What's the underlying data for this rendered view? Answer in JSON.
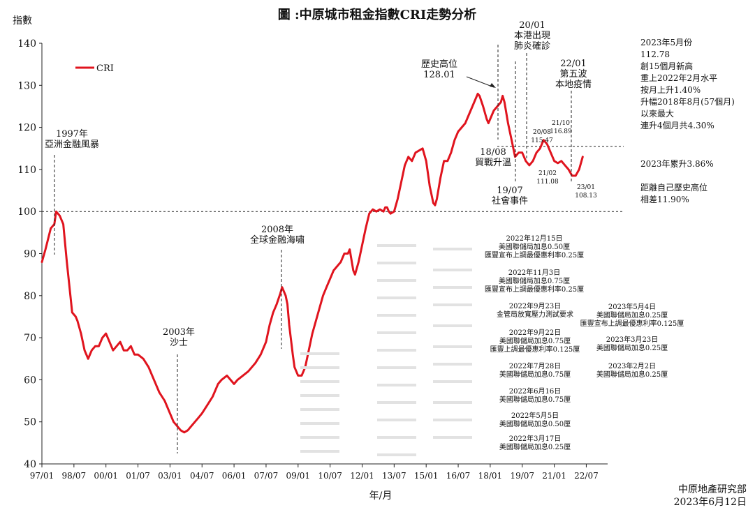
{
  "chart_data": {
    "type": "line",
    "title": "圖 :中原城市租金指數CRI走勢分析",
    "ylabel": "指數",
    "xlabel": "年/月",
    "ylim": [
      40,
      140
    ],
    "yticks": [
      40,
      50,
      60,
      70,
      80,
      90,
      100,
      110,
      120,
      130,
      140
    ],
    "xtick_labels": [
      "97/01",
      "98/07",
      "00/01",
      "01/07",
      "03/01",
      "04/07",
      "06/01",
      "07/07",
      "09/01",
      "10/07",
      "12/01",
      "13/07",
      "15/01",
      "16/07",
      "18/01",
      "19/07",
      "21/01",
      "22/07"
    ],
    "x_start": "97/01",
    "legend": "CRI",
    "reference_lines": [
      100,
      115.5
    ],
    "series": [
      {
        "name": "CRI",
        "color": "#e0141e",
        "points": [
          [
            0,
            88
          ],
          [
            2,
            91
          ],
          [
            5,
            96
          ],
          [
            7,
            97
          ],
          [
            8,
            100
          ],
          [
            10,
            99
          ],
          [
            12,
            97
          ],
          [
            14,
            88
          ],
          [
            16,
            80
          ],
          [
            17,
            76
          ],
          [
            19,
            75
          ],
          [
            20,
            74
          ],
          [
            22,
            71
          ],
          [
            24,
            67
          ],
          [
            26,
            65
          ],
          [
            28,
            67
          ],
          [
            30,
            68
          ],
          [
            32,
            68
          ],
          [
            34,
            70
          ],
          [
            36,
            71
          ],
          [
            38,
            69
          ],
          [
            40,
            67
          ],
          [
            42,
            68
          ],
          [
            44,
            69
          ],
          [
            46,
            67
          ],
          [
            48,
            67
          ],
          [
            50,
            68
          ],
          [
            52,
            66
          ],
          [
            54,
            66
          ],
          [
            57,
            65
          ],
          [
            60,
            63
          ],
          [
            62,
            61
          ],
          [
            64,
            59
          ],
          [
            66,
            57
          ],
          [
            69,
            55
          ],
          [
            72,
            52
          ],
          [
            74,
            50
          ],
          [
            76,
            49
          ],
          [
            78,
            48
          ],
          [
            80,
            47.5
          ],
          [
            82,
            48
          ],
          [
            84,
            49
          ],
          [
            86,
            50
          ],
          [
            88,
            51
          ],
          [
            90,
            52
          ],
          [
            93,
            54
          ],
          [
            96,
            56
          ],
          [
            99,
            59
          ],
          [
            101,
            60
          ],
          [
            104,
            61
          ],
          [
            106,
            60
          ],
          [
            108,
            59
          ],
          [
            110,
            60
          ],
          [
            113,
            61
          ],
          [
            116,
            62
          ],
          [
            118,
            63
          ],
          [
            120,
            64
          ],
          [
            123,
            66
          ],
          [
            126,
            69
          ],
          [
            128,
            73
          ],
          [
            130,
            76
          ],
          [
            132,
            78
          ],
          [
            134,
            80.5
          ],
          [
            135,
            82
          ],
          [
            137,
            80
          ],
          [
            138,
            78
          ],
          [
            139,
            73
          ],
          [
            141,
            66
          ],
          [
            142,
            63
          ],
          [
            144,
            61
          ],
          [
            146,
            61
          ],
          [
            148,
            63
          ],
          [
            150,
            67
          ],
          [
            152,
            71
          ],
          [
            154,
            74
          ],
          [
            156,
            77
          ],
          [
            158,
            80
          ],
          [
            160,
            82
          ],
          [
            162,
            84
          ],
          [
            164,
            86
          ],
          [
            166,
            87
          ],
          [
            168,
            88
          ],
          [
            170,
            90
          ],
          [
            172,
            90
          ],
          [
            173,
            91
          ],
          [
            175,
            86
          ],
          [
            176,
            85
          ],
          [
            178,
            88
          ],
          [
            180,
            92
          ],
          [
            182,
            96
          ],
          [
            184,
            99.5
          ],
          [
            186,
            100.5
          ],
          [
            188,
            100
          ],
          [
            190,
            100.5
          ],
          [
            192,
            100
          ],
          [
            193,
            101
          ],
          [
            194,
            101
          ],
          [
            195,
            100
          ],
          [
            196,
            99.5
          ],
          [
            198,
            100
          ],
          [
            200,
            103
          ],
          [
            202,
            107
          ],
          [
            204,
            111
          ],
          [
            206,
            113
          ],
          [
            208,
            112
          ],
          [
            210,
            114
          ],
          [
            212,
            114.5
          ],
          [
            214,
            115
          ],
          [
            216,
            112
          ],
          [
            218,
            106
          ],
          [
            220,
            102
          ],
          [
            221,
            101.5
          ],
          [
            222,
            103
          ],
          [
            224,
            108
          ],
          [
            226,
            112
          ],
          [
            228,
            112
          ],
          [
            230,
            114
          ],
          [
            232,
            117
          ],
          [
            234,
            119
          ],
          [
            236,
            120
          ],
          [
            238,
            121
          ],
          [
            240,
            123
          ],
          [
            242,
            125
          ],
          [
            244,
            127
          ],
          [
            245,
            128
          ],
          [
            246,
            127.5
          ],
          [
            248,
            125
          ],
          [
            250,
            122
          ],
          [
            251,
            121
          ],
          [
            252,
            122
          ],
          [
            254,
            124
          ],
          [
            256,
            125
          ],
          [
            258,
            126
          ],
          [
            259,
            127.5
          ],
          [
            260,
            126
          ],
          [
            262,
            121
          ],
          [
            264,
            117
          ],
          [
            266,
            113
          ],
          [
            268,
            114
          ],
          [
            270,
            114
          ],
          [
            272,
            112
          ],
          [
            274,
            111
          ],
          [
            276,
            112
          ],
          [
            278,
            114
          ],
          [
            280,
            115
          ],
          [
            282,
            117
          ],
          [
            284,
            116
          ],
          [
            286,
            114
          ],
          [
            288,
            112
          ],
          [
            290,
            111.5
          ],
          [
            292,
            112
          ],
          [
            294,
            111
          ],
          [
            296,
            110
          ],
          [
            298,
            108.5
          ],
          [
            300,
            108.5
          ],
          [
            302,
            110
          ],
          [
            304,
            113
          ]
        ],
        "labeled_points": [
          {
            "label": "歷史高位",
            "value": "128.01"
          },
          {
            "label": "20/08",
            "value": "115.47"
          },
          {
            "label": "21/10",
            "value": "116.89"
          },
          {
            "label": "21/02",
            "value": "111.08"
          },
          {
            "label": "23/01",
            "value": "108.13"
          }
        ]
      }
    ],
    "annotations": [
      {
        "id": "asia-crisis",
        "lines": [
          "1997年",
          "亞洲金融風暴"
        ]
      },
      {
        "id": "sars",
        "lines": [
          "2003年",
          "沙士"
        ]
      },
      {
        "id": "tsunami",
        "lines": [
          "2008年",
          "全球金融海嘯"
        ]
      },
      {
        "id": "trade-war",
        "lines": [
          "18/08",
          "貿戰升溫"
        ]
      },
      {
        "id": "social-event",
        "lines": [
          "19/07",
          "社會事件"
        ]
      },
      {
        "id": "hk-covid",
        "lines": [
          "20/01",
          "本港出現",
          "肺炎確診"
        ]
      },
      {
        "id": "fifth-wave",
        "lines": [
          "22/01",
          "第五波",
          "本地疫情"
        ]
      },
      {
        "id": "historic-high",
        "lines": [
          "歷史高位",
          "128.01"
        ]
      },
      {
        "id": "label-2008",
        "lines": [
          "20/08",
          "115.47"
        ]
      },
      {
        "id": "label-2110",
        "lines": [
          "21/10",
          "116.89"
        ]
      },
      {
        "id": "label-2102",
        "lines": [
          "21/02",
          "111.08"
        ]
      },
      {
        "id": "label-2301",
        "lines": [
          "23/01",
          "108.13"
        ]
      }
    ],
    "rate_notes": [
      {
        "date": "2022年12月15日",
        "lines": [
          "美國聯儲局加息0.50厘",
          "匯豐宣布上調最優惠利率0.25厘"
        ]
      },
      {
        "date": "2022年11月3日",
        "lines": [
          "美國聯儲局加息0.75厘",
          "匯豐宣布上調最優惠利率0.25厘"
        ]
      },
      {
        "date": "2022年9月23日",
        "lines": [
          "金管局放寬壓力測試要求"
        ]
      },
      {
        "date": "2022年9月22日",
        "lines": [
          "美國聯儲局加息0.75厘",
          "匯豐上調最優惠利率0.125厘"
        ]
      },
      {
        "date": "2022年7月28日",
        "lines": [
          "美國聯儲局加息0.75厘"
        ]
      },
      {
        "date": "2022年6月16日",
        "lines": [
          "美國聯儲局加息0.75厘"
        ]
      },
      {
        "date": "2022年5月5日",
        "lines": [
          "美國聯儲局加息0.50厘"
        ]
      },
      {
        "date": "2022年3月17日",
        "lines": [
          "美國聯儲局加息0.25厘"
        ]
      },
      {
        "date": "2023年5月4日",
        "lines": [
          "美國聯儲局加息0.25厘",
          "匯豐宣布上調最優惠利率0.125厘"
        ]
      },
      {
        "date": "2023年3月23日",
        "lines": [
          "美國聯儲局加息0.25厘"
        ]
      },
      {
        "date": "2023年2月2日",
        "lines": [
          "美國聯儲局加息0.25厘"
        ]
      }
    ]
  },
  "side_notes": {
    "latest": [
      "2023年5月份",
      "112.78",
      "創15個月新高",
      "重上2022年2月水平",
      "按月上升1.40%",
      "升幅2018年8月(57個月)",
      "以來最大",
      "連升4個月共4.30%"
    ],
    "ytd": "2023年累升3.86%",
    "gap": [
      "距離自己歷史高位",
      "相差11.90%"
    ]
  },
  "footer": {
    "source": "中原地產研究部",
    "date": "2023年6月12日"
  }
}
